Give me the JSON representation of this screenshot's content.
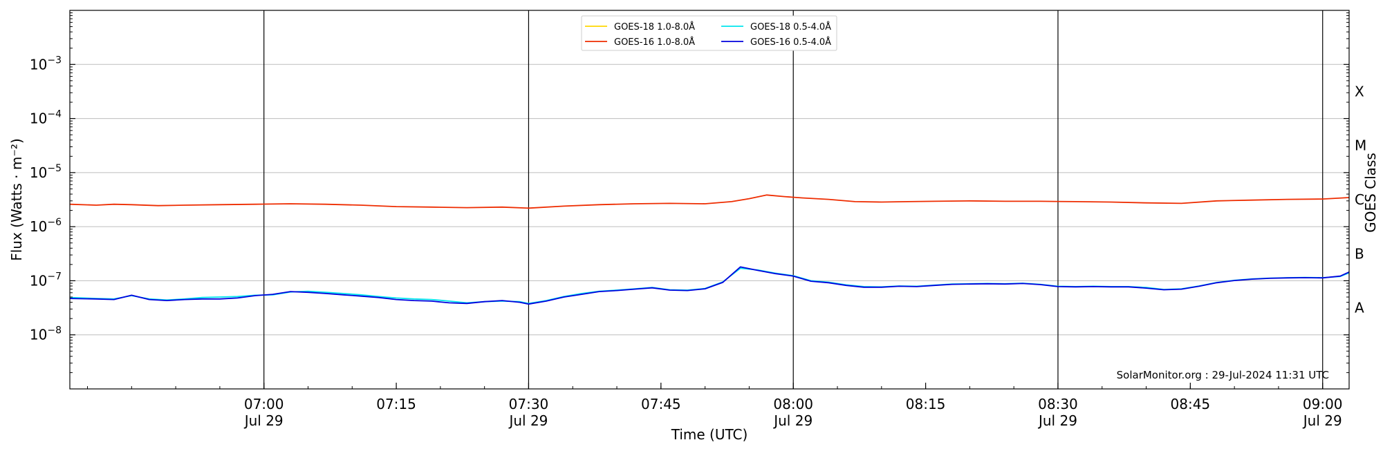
{
  "chart_data": {
    "type": "line",
    "xlabel": "Time (UTC)",
    "ylabel": "Flux (Watts · m⁻²)",
    "right_label": "GOES Class",
    "yscale": "log",
    "ylim": [
      1e-09,
      0.01
    ],
    "xlim": [
      "06:38",
      "09:03"
    ],
    "grid": "y-major",
    "legend_position": "top-center",
    "x_ticks": [
      {
        "time": "07:00",
        "label": "07:00",
        "sublabel": "Jul 29"
      },
      {
        "time": "07:15",
        "label": "07:15",
        "sublabel": ""
      },
      {
        "time": "07:30",
        "label": "07:30",
        "sublabel": "Jul 29"
      },
      {
        "time": "07:45",
        "label": "07:45",
        "sublabel": ""
      },
      {
        "time": "08:00",
        "label": "08:00",
        "sublabel": "Jul 29"
      },
      {
        "time": "08:15",
        "label": "08:15",
        "sublabel": ""
      },
      {
        "time": "08:30",
        "label": "08:30",
        "sublabel": "Jul 29"
      },
      {
        "time": "08:45",
        "label": "08:45",
        "sublabel": ""
      },
      {
        "time": "09:00",
        "label": "09:00",
        "sublabel": "Jul 29"
      }
    ],
    "vertical_lines": [
      "07:00",
      "07:30",
      "08:00",
      "08:30",
      "09:00"
    ],
    "y_ticks": [
      {
        "value": 1e-08,
        "mantissa": "10",
        "exponent": "−8"
      },
      {
        "value": 1e-07,
        "mantissa": "10",
        "exponent": "−7"
      },
      {
        "value": 1e-06,
        "mantissa": "10",
        "exponent": "−6"
      },
      {
        "value": 1e-05,
        "mantissa": "10",
        "exponent": "−5"
      },
      {
        "value": 0.0001,
        "mantissa": "10",
        "exponent": "−4"
      },
      {
        "value": 0.001,
        "mantissa": "10",
        "exponent": "−3"
      }
    ],
    "goes_classes": [
      {
        "label": "A",
        "value": 3.16e-08
      },
      {
        "label": "B",
        "value": 3.16e-07
      },
      {
        "label": "C",
        "value": 3.16e-06
      },
      {
        "label": "M",
        "value": 3.16e-05
      },
      {
        "label": "X",
        "value": 0.000316
      }
    ],
    "annotation": "SolarMonitor.org : 29-Jul-2024 11:31 UTC",
    "series": [
      {
        "name": "GOES-18 1.0-8.0Å",
        "color": "#ffd700",
        "x": [],
        "values": []
      },
      {
        "name": "GOES-18 0.5-4.0Å",
        "color": "#00e5ee",
        "x": [
          "06:38",
          "06:41",
          "06:43",
          "06:45",
          "06:47",
          "06:49",
          "06:51",
          "06:53",
          "06:55",
          "06:57",
          "06:59",
          "07:01",
          "07:03",
          "07:05",
          "07:07",
          "07:09",
          "07:11",
          "07:13",
          "07:15",
          "07:17",
          "07:19",
          "07:21",
          "07:23",
          "07:25",
          "07:27",
          "07:29",
          "07:30",
          "07:32",
          "07:34",
          "07:36",
          "07:38",
          "07:40",
          "07:42",
          "07:44",
          "07:46",
          "07:48",
          "07:50",
          "07:52",
          "07:54",
          "07:56",
          "07:58",
          "08:00",
          "08:02",
          "08:04",
          "08:06",
          "08:08",
          "08:10",
          "08:12",
          "08:14",
          "08:16",
          "08:18",
          "08:20",
          "08:22",
          "08:24",
          "08:26",
          "08:28",
          "08:30",
          "08:32",
          "08:34",
          "08:36",
          "08:38",
          "08:40",
          "08:42",
          "08:44",
          "08:46",
          "08:48",
          "08:50",
          "08:52",
          "08:54",
          "08:56",
          "08:58",
          "09:00",
          "09:02",
          "09:03"
        ],
        "values": [
          4.9e-08,
          4.7e-08,
          4.6e-08,
          5.3e-08,
          4.6e-08,
          4.4e-08,
          4.6e-08,
          4.9e-08,
          5e-08,
          5.1e-08,
          5.4e-08,
          5.5e-08,
          6.2e-08,
          6.4e-08,
          6.1e-08,
          5.8e-08,
          5.5e-08,
          5.1e-08,
          4.8e-08,
          4.6e-08,
          4.5e-08,
          4.2e-08,
          3.9e-08,
          4.1e-08,
          4.2e-08,
          4.1e-08,
          3.8e-08,
          4.3e-08,
          5.1e-08,
          5.8e-08,
          6.4e-08,
          6.7e-08,
          7.1e-08,
          7.5e-08,
          6.8e-08,
          6.7e-08,
          7.2e-08,
          9.5e-08,
          1.7e-07,
          1.58e-07,
          1.38e-07,
          1.24e-07,
          1e-07,
          9.4e-08,
          8.4e-08,
          7.8e-08,
          7.7e-08,
          8e-08,
          7.9e-08,
          8.3e-08,
          8.7e-08,
          8.8e-08,
          8.9e-08,
          8.8e-08,
          9e-08,
          8.6e-08,
          7.9e-08,
          7.8e-08,
          7.9e-08,
          7.8e-08,
          7.8e-08,
          7.5e-08,
          6.9e-08,
          7.1e-08,
          8e-08,
          9.3e-08,
          1.02e-07,
          1.08e-07,
          1.12e-07,
          1.14e-07,
          1.15e-07,
          1.14e-07,
          1.2e-07,
          1.4e-07
        ]
      },
      {
        "name": "GOES-16 1.0-8.0Å",
        "color": "#ee2c00",
        "x": [
          "06:38",
          "06:41",
          "06:43",
          "06:45",
          "06:48",
          "06:51",
          "06:55",
          "06:59",
          "07:03",
          "07:07",
          "07:11",
          "07:15",
          "07:19",
          "07:23",
          "07:27",
          "07:30",
          "07:34",
          "07:38",
          "07:42",
          "07:46",
          "07:50",
          "07:53",
          "07:55",
          "07:57",
          "07:59",
          "08:01",
          "08:04",
          "08:07",
          "08:10",
          "08:13",
          "08:16",
          "08:20",
          "08:24",
          "08:28",
          "08:32",
          "08:36",
          "08:40",
          "08:44",
          "08:48",
          "08:52",
          "08:56",
          "09:00",
          "09:03"
        ],
        "values": [
          2.6e-06,
          2.5e-06,
          2.6e-06,
          2.55e-06,
          2.45e-06,
          2.5e-06,
          2.55e-06,
          2.6e-06,
          2.65e-06,
          2.6e-06,
          2.5e-06,
          2.35e-06,
          2.3e-06,
          2.25e-06,
          2.3e-06,
          2.2e-06,
          2.4e-06,
          2.55e-06,
          2.65e-06,
          2.7e-06,
          2.65e-06,
          2.9e-06,
          3.3e-06,
          3.85e-06,
          3.6e-06,
          3.4e-06,
          3.2e-06,
          2.9e-06,
          2.85e-06,
          2.9e-06,
          2.95e-06,
          3e-06,
          2.95e-06,
          2.95e-06,
          2.9e-06,
          2.85e-06,
          2.75e-06,
          2.7e-06,
          3e-06,
          3.1e-06,
          3.2e-06,
          3.25e-06,
          3.45e-06
        ]
      },
      {
        "name": "GOES-16 0.5-4.0Å",
        "color": "#0000dd",
        "x": [
          "06:38",
          "06:41",
          "06:43",
          "06:45",
          "06:47",
          "06:49",
          "06:51",
          "06:53",
          "06:55",
          "06:57",
          "06:59",
          "07:01",
          "07:03",
          "07:05",
          "07:07",
          "07:09",
          "07:11",
          "07:13",
          "07:15",
          "07:17",
          "07:19",
          "07:21",
          "07:23",
          "07:25",
          "07:27",
          "07:29",
          "07:30",
          "07:32",
          "07:34",
          "07:36",
          "07:38",
          "07:40",
          "07:42",
          "07:44",
          "07:46",
          "07:48",
          "07:50",
          "07:52",
          "07:54",
          "07:56",
          "07:58",
          "08:00",
          "08:02",
          "08:04",
          "08:06",
          "08:08",
          "08:10",
          "08:12",
          "08:14",
          "08:16",
          "08:18",
          "08:20",
          "08:22",
          "08:24",
          "08:26",
          "08:28",
          "08:30",
          "08:32",
          "08:34",
          "08:36",
          "08:38",
          "08:40",
          "08:42",
          "08:44",
          "08:46",
          "08:48",
          "08:50",
          "08:52",
          "08:54",
          "08:56",
          "08:58",
          "09:00",
          "09:02",
          "09:03"
        ],
        "values": [
          4.7e-08,
          4.6e-08,
          4.5e-08,
          5.4e-08,
          4.5e-08,
          4.3e-08,
          4.5e-08,
          4.6e-08,
          4.6e-08,
          4.8e-08,
          5.3e-08,
          5.6e-08,
          6.3e-08,
          6.1e-08,
          5.8e-08,
          5.5e-08,
          5.2e-08,
          4.9e-08,
          4.5e-08,
          4.3e-08,
          4.2e-08,
          3.9e-08,
          3.8e-08,
          4.1e-08,
          4.3e-08,
          4e-08,
          3.7e-08,
          4.2e-08,
          5e-08,
          5.6e-08,
          6.3e-08,
          6.6e-08,
          7e-08,
          7.4e-08,
          6.7e-08,
          6.6e-08,
          7.1e-08,
          9.3e-08,
          1.8e-07,
          1.55e-07,
          1.35e-07,
          1.22e-07,
          9.8e-08,
          9.2e-08,
          8.2e-08,
          7.6e-08,
          7.6e-08,
          7.9e-08,
          7.8e-08,
          8.2e-08,
          8.6e-08,
          8.7e-08,
          8.8e-08,
          8.7e-08,
          8.9e-08,
          8.5e-08,
          7.8e-08,
          7.7e-08,
          7.8e-08,
          7.7e-08,
          7.7e-08,
          7.3e-08,
          6.8e-08,
          7e-08,
          7.9e-08,
          9.2e-08,
          1.01e-07,
          1.07e-07,
          1.11e-07,
          1.13e-07,
          1.14e-07,
          1.13e-07,
          1.22e-07,
          1.45e-07
        ]
      }
    ]
  }
}
